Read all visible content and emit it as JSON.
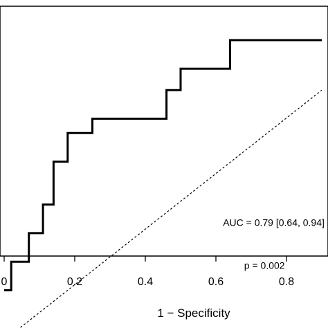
{
  "chart_data": {
    "type": "line",
    "title": "",
    "xlabel": "1 − Specificity",
    "ylabel": "",
    "xlim": [
      0,
      0.9
    ],
    "ylim": [
      0.55,
      1.02
    ],
    "x_ticks": [
      0,
      0.2,
      0.4,
      0.6,
      0.8
    ],
    "x_tick_labels": [
      "0",
      "0.2",
      "0.4",
      "0.6",
      "0.8"
    ],
    "grid": false,
    "series": [
      {
        "style": "step",
        "color": "#000000",
        "x": [
          0,
          0.02,
          0.02,
          0.07,
          0.07,
          0.11,
          0.11,
          0.14,
          0.14,
          0.18,
          0.18,
          0.25,
          0.25,
          0.46,
          0.46,
          0.5,
          0.5,
          0.64,
          0.64,
          0.9
        ],
        "y": [
          0.62,
          0.62,
          0.66,
          0.66,
          0.7,
          0.7,
          0.74,
          0.74,
          0.8,
          0.8,
          0.84,
          0.84,
          0.86,
          0.86,
          0.9,
          0.9,
          0.93,
          0.93,
          0.97,
          0.97
        ]
      },
      {
        "style": "dashed",
        "color": "#000000",
        "x": [
          0,
          0.9
        ],
        "y": [
          0.55,
          0.9
        ]
      }
    ],
    "annotations": [
      {
        "text": "AUC = 0.79 [0.64, 0.94]",
        "x": 0.62,
        "y": 0.71
      },
      {
        "text": "p = 0.002",
        "x": 0.68,
        "y": 0.65
      }
    ]
  }
}
